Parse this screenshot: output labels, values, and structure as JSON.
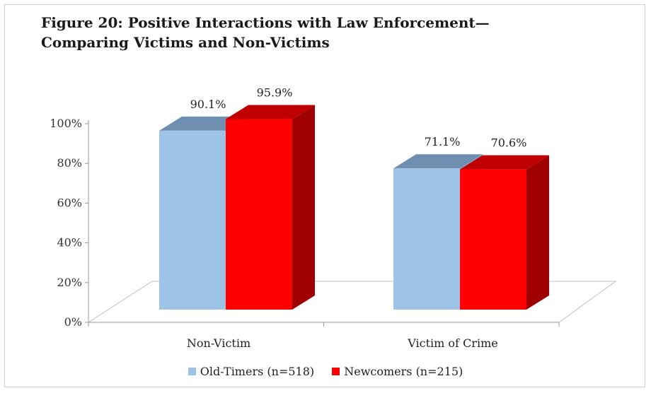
{
  "chart_data": {
    "type": "bar",
    "title_line1": "Figure 20: Positive Interactions with Law Enforcement—",
    "title_line2": "Comparing Victims and Non-Victims",
    "categories": [
      "Non-Victim",
      "Victim of Crime"
    ],
    "series": [
      {
        "name": "Old-Timers (n=518)",
        "values": [
          90.1,
          71.1
        ],
        "labels": [
          "90.1%",
          "71.1%"
        ],
        "color": "#9dc3e6",
        "top_color": "#6f8fb0",
        "side_color": "#7fa3c8"
      },
      {
        "name": "Newcomers (n=215)",
        "values": [
          95.9,
          70.6
        ],
        "labels": [
          "95.9%",
          "70.6%"
        ],
        "color": "#ff0000",
        "top_color": "#c00000",
        "side_color": "#a00000"
      }
    ],
    "ylim": [
      0,
      100
    ],
    "y_ticks": [
      "0%",
      "20%",
      "40%",
      "60%",
      "80%",
      "100%"
    ],
    "legend_position": "bottom",
    "style": "3d-column",
    "grid": false
  }
}
